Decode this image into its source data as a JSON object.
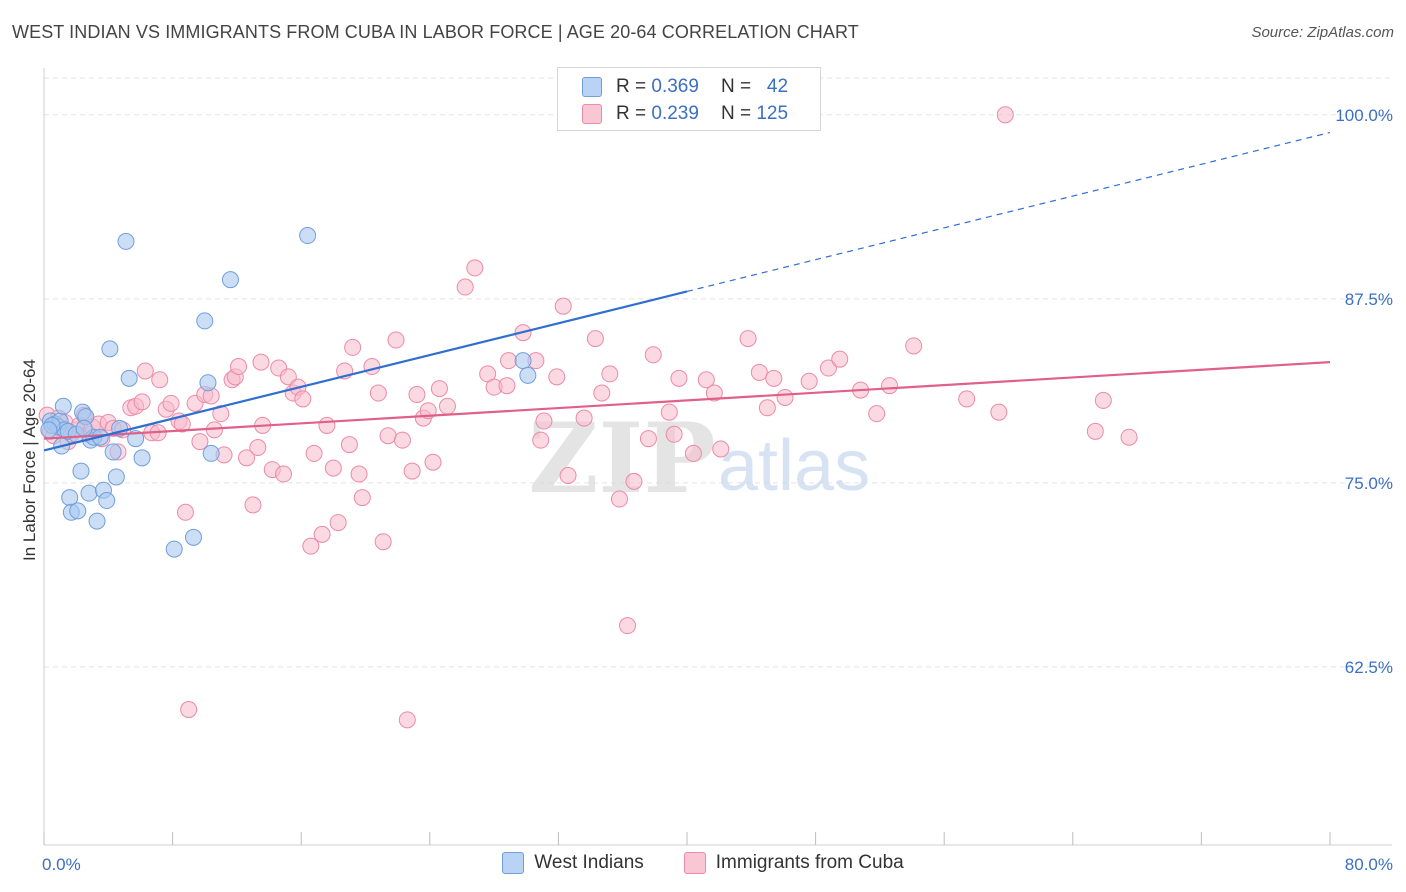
{
  "title": "WEST INDIAN VS IMMIGRANTS FROM CUBA IN LABOR FORCE | AGE 20-64 CORRELATION CHART",
  "source": "Source: ZipAtlas.com",
  "watermark": {
    "zip": "ZIP",
    "atlas": "atlas"
  },
  "colors": {
    "west_indians_fill": "#a9c8f0",
    "west_indians_stroke": "#6f9fdc",
    "west_indians_line": "#2f6fd0",
    "cuba_fill": "#f7b9cc",
    "cuba_stroke": "#ec8aa8",
    "cuba_line": "#e0608a",
    "tick_label": "#3a6fc4",
    "grid": "#e3e3e3"
  },
  "legend_top": [
    {
      "r_label": "R =",
      "r_value": "0.369",
      "n_label": "N =",
      "n_value": "42"
    },
    {
      "r_label": "R =",
      "r_value": "0.239",
      "n_label": "N =",
      "n_value": "125"
    }
  ],
  "chart_data": {
    "type": "scatter",
    "title": "WEST INDIAN VS IMMIGRANTS FROM CUBA IN LABOR FORCE | AGE 20-64 CORRELATION CHART",
    "xlabel": "",
    "ylabel": "In Labor Force | Age 20-64",
    "xlim": [
      0,
      80
    ],
    "ylim": [
      50.4,
      102.5
    ],
    "x_tick_labels": [
      {
        "value": 0,
        "label": "0.0%"
      },
      {
        "value": 80,
        "label": "80.0%"
      }
    ],
    "x_minor_ticks": [
      0,
      8,
      16,
      24,
      32,
      40,
      48,
      56,
      64,
      72,
      80
    ],
    "y_ticks": [
      {
        "value": 100,
        "label": "100.0%"
      },
      {
        "value": 87.5,
        "label": "87.5%"
      },
      {
        "value": 75,
        "label": "75.0%"
      },
      {
        "value": 62.5,
        "label": "62.5%"
      }
    ],
    "grid": true,
    "legend_position": "bottom",
    "series": [
      {
        "name": "West Indians",
        "trend": {
          "x0": 0,
          "y0": 77.2,
          "x1": 40,
          "y1": 88.0,
          "dash_to_x": 80,
          "dash_to_y": 98.8
        },
        "points": [
          [
            0.4,
            79.2
          ],
          [
            0.7,
            79.0
          ],
          [
            0.9,
            78.8
          ],
          [
            1.0,
            79.2
          ],
          [
            1.1,
            77.5
          ],
          [
            1.2,
            80.2
          ],
          [
            1.3,
            78.6
          ],
          [
            1.5,
            78.5
          ],
          [
            1.6,
            74.0
          ],
          [
            1.7,
            73.0
          ],
          [
            2.0,
            78.3
          ],
          [
            2.1,
            73.1
          ],
          [
            2.3,
            75.8
          ],
          [
            2.4,
            79.8
          ],
          [
            2.6,
            79.5
          ],
          [
            2.8,
            74.3
          ],
          [
            2.9,
            77.9
          ],
          [
            3.1,
            78.1
          ],
          [
            3.3,
            72.4
          ],
          [
            3.5,
            78.1
          ],
          [
            3.7,
            74.5
          ],
          [
            3.9,
            73.8
          ],
          [
            4.1,
            84.1
          ],
          [
            4.3,
            77.1
          ],
          [
            4.5,
            75.4
          ],
          [
            4.7,
            78.7
          ],
          [
            5.1,
            91.4
          ],
          [
            5.3,
            82.1
          ],
          [
            5.7,
            78.0
          ],
          [
            6.1,
            76.7
          ],
          [
            8.1,
            70.5
          ],
          [
            9.3,
            71.3
          ],
          [
            10.0,
            86.0
          ],
          [
            10.2,
            81.8
          ],
          [
            10.4,
            77.0
          ],
          [
            11.6,
            88.8
          ],
          [
            16.4,
            91.8
          ],
          [
            29.8,
            83.3
          ],
          [
            30.1,
            82.3
          ],
          [
            0.5,
            78.9
          ],
          [
            0.3,
            78.6
          ],
          [
            2.5,
            78.7
          ]
        ]
      },
      {
        "name": "Immigrants from Cuba",
        "trend": {
          "x0": 0,
          "y0": 78.0,
          "x1": 80,
          "y1": 83.2
        },
        "points": [
          [
            0.2,
            79.6
          ],
          [
            0.4,
            78.5
          ],
          [
            0.6,
            78.2
          ],
          [
            0.9,
            79.4
          ],
          [
            1.1,
            78.7
          ],
          [
            1.3,
            79.1
          ],
          [
            1.5,
            77.8
          ],
          [
            1.7,
            78.3
          ],
          [
            2.0,
            78.6
          ],
          [
            2.2,
            78.9
          ],
          [
            2.5,
            79.6
          ],
          [
            2.8,
            78.3
          ],
          [
            3.0,
            78.8
          ],
          [
            3.4,
            79.0
          ],
          [
            3.6,
            78.0
          ],
          [
            4.0,
            79.1
          ],
          [
            4.3,
            78.7
          ],
          [
            4.6,
            77.1
          ],
          [
            4.9,
            78.6
          ],
          [
            5.4,
            80.1
          ],
          [
            5.7,
            80.2
          ],
          [
            6.1,
            80.5
          ],
          [
            6.3,
            82.6
          ],
          [
            6.7,
            78.4
          ],
          [
            7.1,
            78.4
          ],
          [
            7.2,
            82.0
          ],
          [
            7.6,
            80.0
          ],
          [
            7.9,
            80.4
          ],
          [
            8.4,
            79.2
          ],
          [
            8.6,
            79.0
          ],
          [
            8.8,
            73.0
          ],
          [
            9.0,
            59.6
          ],
          [
            9.4,
            80.4
          ],
          [
            9.7,
            77.8
          ],
          [
            10.0,
            81.0
          ],
          [
            10.4,
            80.9
          ],
          [
            10.6,
            78.6
          ],
          [
            11.0,
            79.7
          ],
          [
            11.2,
            76.9
          ],
          [
            11.7,
            82.0
          ],
          [
            11.9,
            82.2
          ],
          [
            12.1,
            82.9
          ],
          [
            12.6,
            76.7
          ],
          [
            13.0,
            73.5
          ],
          [
            13.3,
            77.4
          ],
          [
            13.5,
            83.2
          ],
          [
            13.6,
            78.9
          ],
          [
            14.2,
            75.9
          ],
          [
            14.6,
            82.8
          ],
          [
            14.9,
            75.6
          ],
          [
            15.2,
            82.2
          ],
          [
            15.5,
            81.1
          ],
          [
            15.8,
            81.5
          ],
          [
            16.1,
            80.7
          ],
          [
            16.6,
            70.7
          ],
          [
            16.8,
            77.0
          ],
          [
            17.3,
            71.5
          ],
          [
            17.6,
            78.9
          ],
          [
            18.0,
            76.0
          ],
          [
            18.3,
            72.3
          ],
          [
            18.7,
            82.6
          ],
          [
            19.0,
            77.6
          ],
          [
            19.2,
            84.2
          ],
          [
            19.6,
            75.6
          ],
          [
            19.8,
            74.0
          ],
          [
            20.4,
            82.9
          ],
          [
            20.8,
            81.1
          ],
          [
            21.1,
            71.0
          ],
          [
            21.4,
            78.2
          ],
          [
            21.9,
            84.7
          ],
          [
            22.3,
            77.9
          ],
          [
            22.6,
            58.9
          ],
          [
            22.9,
            75.8
          ],
          [
            23.2,
            81.0
          ],
          [
            23.6,
            79.4
          ],
          [
            23.9,
            79.9
          ],
          [
            24.2,
            76.4
          ],
          [
            24.6,
            81.4
          ],
          [
            25.1,
            80.2
          ],
          [
            26.2,
            88.3
          ],
          [
            26.8,
            89.6
          ],
          [
            27.6,
            82.4
          ],
          [
            28.0,
            81.5
          ],
          [
            28.8,
            81.6
          ],
          [
            28.9,
            83.3
          ],
          [
            29.8,
            85.2
          ],
          [
            30.6,
            83.3
          ],
          [
            30.9,
            77.9
          ],
          [
            31.1,
            79.2
          ],
          [
            31.9,
            82.2
          ],
          [
            32.3,
            87.0
          ],
          [
            32.6,
            75.5
          ],
          [
            33.6,
            79.4
          ],
          [
            34.3,
            84.8
          ],
          [
            34.7,
            81.1
          ],
          [
            35.2,
            82.4
          ],
          [
            35.8,
            73.9
          ],
          [
            36.3,
            65.3
          ],
          [
            36.7,
            75.1
          ],
          [
            37.6,
            78.0
          ],
          [
            37.9,
            83.7
          ],
          [
            38.9,
            79.8
          ],
          [
            39.2,
            78.3
          ],
          [
            39.5,
            82.1
          ],
          [
            40.4,
            77.0
          ],
          [
            41.2,
            82.0
          ],
          [
            41.7,
            81.1
          ],
          [
            42.1,
            77.3
          ],
          [
            43.8,
            84.8
          ],
          [
            44.5,
            82.5
          ],
          [
            45.0,
            80.1
          ],
          [
            45.4,
            82.1
          ],
          [
            46.1,
            80.8
          ],
          [
            47.6,
            81.9
          ],
          [
            48.8,
            82.8
          ],
          [
            49.5,
            83.4
          ],
          [
            50.8,
            81.3
          ],
          [
            51.8,
            79.7
          ],
          [
            52.6,
            81.6
          ],
          [
            54.1,
            84.3
          ],
          [
            57.4,
            80.7
          ],
          [
            59.4,
            79.8
          ],
          [
            59.8,
            100.0
          ],
          [
            65.4,
            78.5
          ],
          [
            65.9,
            80.6
          ],
          [
            67.5,
            78.1
          ]
        ]
      }
    ]
  },
  "legend_bottom": [
    "West Indians",
    "Immigrants from Cuba"
  ]
}
